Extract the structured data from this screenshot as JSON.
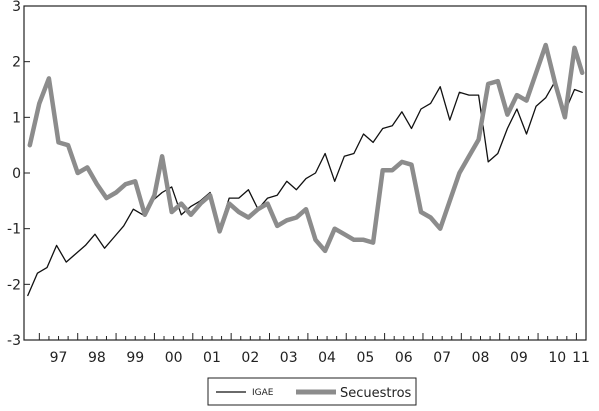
{
  "chart_data": {
    "type": "line",
    "x_tick_labels": [
      "97",
      "98",
      "99",
      "00",
      "01",
      "02",
      "03",
      "04",
      "05",
      "06",
      "07",
      "08",
      "09",
      "10",
      "11"
    ],
    "y_tick_labels": [
      "-3",
      "-2",
      "-1",
      "0",
      "1",
      "2",
      "3"
    ],
    "ylim": [
      -3,
      3
    ],
    "xlim": [
      1996.6,
      2011.25
    ],
    "grid": false,
    "legend_position": "bottom-center",
    "series": [
      {
        "name": "IGAE",
        "color": "#111111",
        "style": "thin",
        "x": [
          1996.7,
          1996.95,
          1997.2,
          1997.45,
          1997.7,
          1997.95,
          1998.2,
          1998.45,
          1998.7,
          1998.95,
          1999.2,
          1999.45,
          1999.7,
          1999.95,
          2000.2,
          2000.45,
          2000.7,
          2000.95,
          2001.2,
          2001.45,
          2001.7,
          2001.95,
          2002.2,
          2002.45,
          2002.7,
          2002.95,
          2003.2,
          2003.45,
          2003.7,
          2003.95,
          2004.2,
          2004.45,
          2004.7,
          2004.95,
          2005.2,
          2005.45,
          2005.7,
          2005.95,
          2006.2,
          2006.45,
          2006.7,
          2006.95,
          2007.2,
          2007.45,
          2007.7,
          2007.95,
          2008.2,
          2008.45,
          2008.7,
          2008.95,
          2009.2,
          2009.45,
          2009.7,
          2009.95,
          2010.2,
          2010.45,
          2010.7,
          2010.95,
          2011.15
        ],
        "y": [
          -2.2,
          -1.8,
          -1.7,
          -1.3,
          -1.6,
          -1.45,
          -1.3,
          -1.1,
          -1.35,
          -1.15,
          -0.95,
          -0.65,
          -0.75,
          -0.5,
          -0.35,
          -0.25,
          -0.75,
          -0.6,
          -0.5,
          -0.35,
          -1.0,
          -0.45,
          -0.45,
          -0.3,
          -0.65,
          -0.45,
          -0.4,
          -0.15,
          -0.3,
          -0.1,
          0.0,
          0.35,
          -0.15,
          0.3,
          0.35,
          0.7,
          0.55,
          0.8,
          0.85,
          1.1,
          0.8,
          1.15,
          1.25,
          1.55,
          0.95,
          1.45,
          1.4,
          1.4,
          0.2,
          0.35,
          0.8,
          1.15,
          0.7,
          1.2,
          1.35,
          1.65,
          1.1,
          1.5,
          1.45
        ]
      },
      {
        "name": "Secuestros",
        "color": "#8c8c8c",
        "style": "thick",
        "x": [
          1996.75,
          1997.0,
          1997.25,
          1997.5,
          1997.75,
          1998.0,
          1998.25,
          1998.5,
          1998.75,
          1999.0,
          1999.25,
          1999.5,
          1999.75,
          2000.0,
          2000.2,
          2000.45,
          2000.7,
          2000.95,
          2001.2,
          2001.45,
          2001.7,
          2001.95,
          2002.2,
          2002.45,
          2002.7,
          2002.95,
          2003.2,
          2003.45,
          2003.7,
          2003.95,
          2004.2,
          2004.45,
          2004.7,
          2004.95,
          2005.2,
          2005.45,
          2005.7,
          2005.95,
          2006.2,
          2006.45,
          2006.7,
          2006.95,
          2007.2,
          2007.45,
          2007.7,
          2007.95,
          2008.2,
          2008.45,
          2008.7,
          2008.95,
          2009.2,
          2009.45,
          2009.7,
          2009.95,
          2010.2,
          2010.45,
          2010.7,
          2010.95,
          2011.15
        ],
        "y": [
          0.5,
          1.25,
          1.7,
          0.55,
          0.5,
          0.0,
          0.1,
          -0.2,
          -0.45,
          -0.35,
          -0.2,
          -0.15,
          -0.75,
          -0.4,
          0.3,
          -0.7,
          -0.55,
          -0.75,
          -0.55,
          -0.4,
          -1.05,
          -0.55,
          -0.7,
          -0.8,
          -0.65,
          -0.55,
          -0.95,
          -0.85,
          -0.8,
          -0.65,
          -1.2,
          -1.4,
          -1.0,
          -1.1,
          -1.2,
          -1.2,
          -1.25,
          0.05,
          0.05,
          0.2,
          0.15,
          -0.7,
          -0.8,
          -1.0,
          -0.5,
          0.0,
          0.3,
          0.6,
          1.6,
          1.65,
          1.05,
          1.4,
          1.3,
          1.8,
          2.3,
          1.6,
          1.0,
          2.25,
          1.8
        ]
      }
    ]
  }
}
